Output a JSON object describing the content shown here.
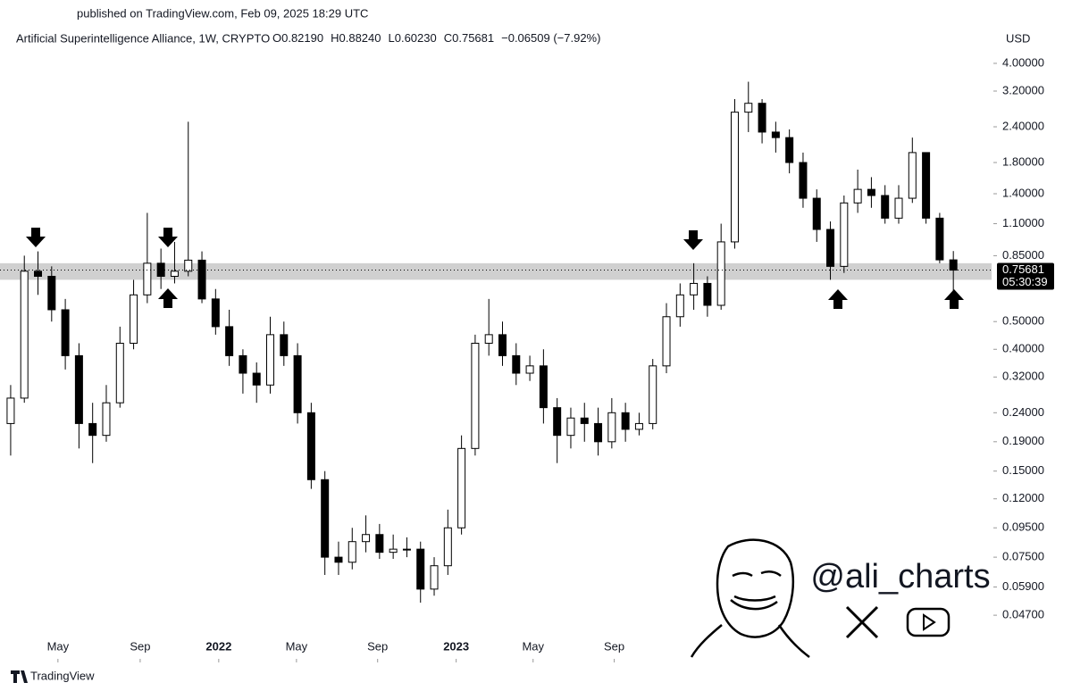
{
  "published": "published on TradingView.com, Feb 09, 2025 18:29 UTC",
  "brand": "TradingView",
  "watermark": "@ali_charts",
  "chart_data": {
    "type": "candlestick",
    "title": "Artificial Superintelligence Alliance, 1W, CRYPTO",
    "ohlc_labels": [
      "O0.82190",
      "H0.88240",
      "L0.60230",
      "C0.75681",
      "−0.06509 (−7.92%)"
    ],
    "currency": "USD",
    "last_price_label": "0.75681",
    "countdown": "05:30:39",
    "log_scale": true,
    "support_zone": [
      0.7,
      0.8
    ],
    "xlim": [
      -0.78,
      71.8
    ],
    "xticks": [
      {
        "value": 3.46,
        "label": "May"
      },
      {
        "value": 9.48,
        "label": "Sep"
      },
      {
        "value": 15.23,
        "label": "2022"
      },
      {
        "value": 20.92,
        "label": "May"
      },
      {
        "value": 26.86,
        "label": "Sep"
      },
      {
        "value": 32.61,
        "label": "2023"
      },
      {
        "value": 38.24,
        "label": "May"
      },
      {
        "value": 44.18,
        "label": "Sep"
      }
    ],
    "ylim": [
      0.0326,
      5.37
    ],
    "yticks": [
      {
        "value": 4.0,
        "label": "4.00000"
      },
      {
        "value": 3.2,
        "label": "3.20000"
      },
      {
        "value": 2.4,
        "label": "2.40000"
      },
      {
        "value": 1.8,
        "label": "1.80000"
      },
      {
        "value": 1.4,
        "label": "1.40000"
      },
      {
        "value": 1.1,
        "label": "1.10000"
      },
      {
        "value": 0.85,
        "label": "0.85000"
      },
      {
        "value": 0.5,
        "label": "0.50000"
      },
      {
        "value": 0.4,
        "label": "0.40000"
      },
      {
        "value": 0.32,
        "label": "0.32000"
      },
      {
        "value": 0.24,
        "label": "0.24000"
      },
      {
        "value": 0.19,
        "label": "0.19000"
      },
      {
        "value": 0.15,
        "label": "0.15000"
      },
      {
        "value": 0.12,
        "label": "0.12000"
      },
      {
        "value": 0.095,
        "label": "0.09500"
      },
      {
        "value": 0.075,
        "label": "0.07500"
      },
      {
        "value": 0.059,
        "label": "0.05900"
      },
      {
        "value": 0.047,
        "label": "0.04700"
      }
    ],
    "open": [
      0.22,
      0.27,
      0.75,
      0.72,
      0.55,
      0.38,
      0.22,
      0.2,
      0.26,
      0.42,
      0.62,
      0.8,
      0.72,
      0.75,
      0.82,
      0.6,
      0.48,
      0.38,
      0.33,
      0.3,
      0.45,
      0.38,
      0.24,
      0.14,
      0.075,
      0.072,
      0.085,
      0.09,
      0.078,
      0.08,
      0.08,
      0.058,
      0.07,
      0.095,
      0.18,
      0.42,
      0.45,
      0.38,
      0.33,
      0.35,
      0.25,
      0.2,
      0.23,
      0.22,
      0.19,
      0.24,
      0.21,
      0.22,
      0.35,
      0.52,
      0.62,
      0.68,
      0.57,
      0.95,
      2.7,
      2.9,
      2.3,
      2.2,
      1.8,
      1.35,
      1.05,
      0.78,
      1.3,
      1.45,
      1.38,
      1.15,
      1.35,
      1.95,
      1.15,
      0.8219
    ],
    "high": [
      0.3,
      0.85,
      0.88,
      0.78,
      0.6,
      0.42,
      0.26,
      0.3,
      0.48,
      0.7,
      1.2,
      0.9,
      0.95,
      2.5,
      0.88,
      0.65,
      0.55,
      0.4,
      0.36,
      0.52,
      0.5,
      0.42,
      0.26,
      0.15,
      0.085,
      0.095,
      0.105,
      0.098,
      0.09,
      0.088,
      0.085,
      0.075,
      0.11,
      0.2,
      0.45,
      0.6,
      0.5,
      0.42,
      0.38,
      0.4,
      0.27,
      0.25,
      0.26,
      0.25,
      0.27,
      0.26,
      0.24,
      0.37,
      0.58,
      0.68,
      0.8,
      0.72,
      1.1,
      3.0,
      3.45,
      3.0,
      2.5,
      2.35,
      1.95,
      1.45,
      1.12,
      1.38,
      1.7,
      1.6,
      1.5,
      1.5,
      2.2,
      1.95,
      1.2,
      0.8824
    ],
    "low": [
      0.17,
      0.26,
      0.62,
      0.5,
      0.34,
      0.18,
      0.16,
      0.19,
      0.25,
      0.4,
      0.58,
      0.65,
      0.68,
      0.72,
      0.58,
      0.45,
      0.35,
      0.28,
      0.26,
      0.28,
      0.35,
      0.22,
      0.13,
      0.065,
      0.065,
      0.068,
      0.078,
      0.074,
      0.074,
      0.075,
      0.052,
      0.055,
      0.065,
      0.09,
      0.17,
      0.38,
      0.35,
      0.3,
      0.31,
      0.22,
      0.16,
      0.18,
      0.19,
      0.17,
      0.18,
      0.19,
      0.2,
      0.21,
      0.33,
      0.48,
      0.55,
      0.52,
      0.55,
      0.9,
      2.3,
      2.1,
      1.95,
      1.65,
      1.25,
      0.95,
      0.7,
      0.74,
      1.2,
      1.25,
      1.1,
      1.1,
      1.3,
      1.1,
      0.8,
      0.6023
    ],
    "close": [
      0.27,
      0.75,
      0.72,
      0.55,
      0.38,
      0.22,
      0.2,
      0.26,
      0.42,
      0.62,
      0.8,
      0.72,
      0.75,
      0.82,
      0.6,
      0.48,
      0.38,
      0.33,
      0.3,
      0.45,
      0.38,
      0.24,
      0.14,
      0.075,
      0.072,
      0.085,
      0.09,
      0.078,
      0.08,
      0.08,
      0.058,
      0.07,
      0.095,
      0.18,
      0.42,
      0.45,
      0.38,
      0.33,
      0.35,
      0.25,
      0.2,
      0.23,
      0.22,
      0.19,
      0.24,
      0.21,
      0.22,
      0.35,
      0.52,
      0.62,
      0.68,
      0.57,
      0.95,
      2.7,
      2.9,
      2.3,
      2.2,
      1.8,
      1.35,
      1.05,
      0.78,
      1.3,
      1.45,
      1.38,
      1.15,
      1.35,
      1.95,
      1.15,
      0.8219,
      0.75681
    ],
    "up_color": "#ffffff",
    "down_color": "#000000",
    "zone_color": "#c8c8c8"
  }
}
